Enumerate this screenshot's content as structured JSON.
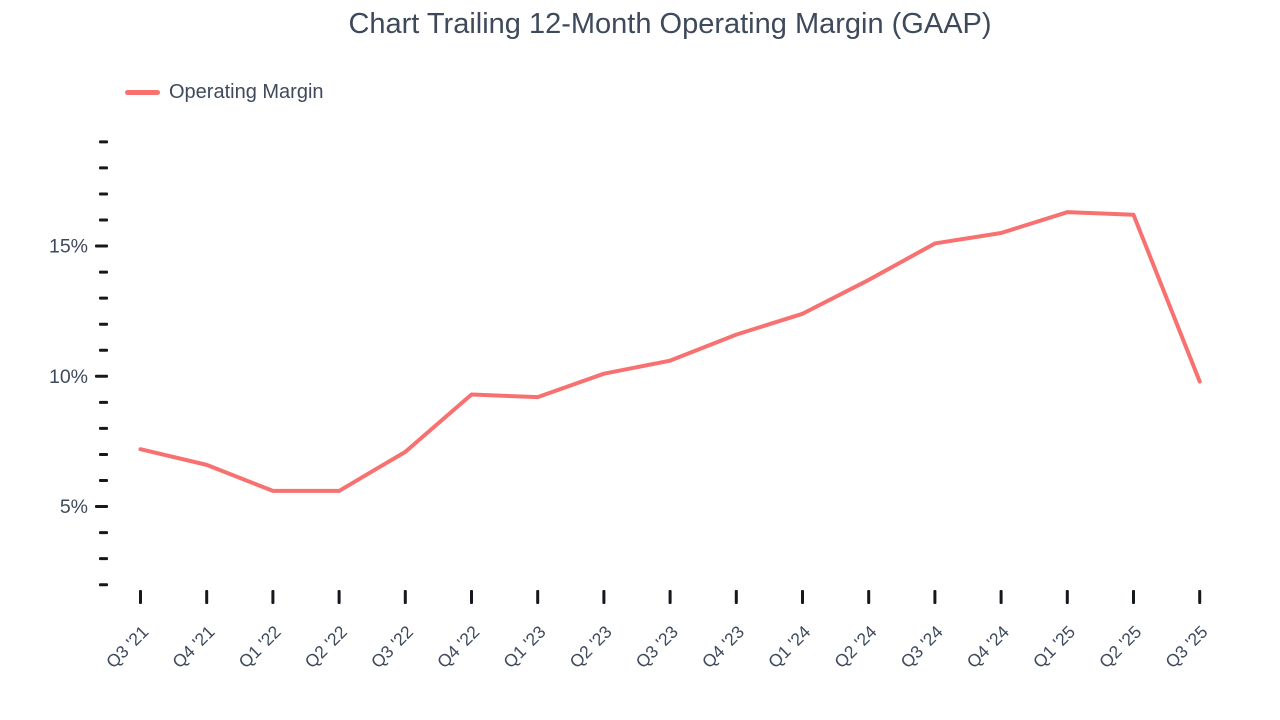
{
  "page": {
    "background": "#ffffff"
  },
  "chart_data": {
    "type": "line",
    "title": "Chart Trailing 12-Month Operating Margin (GAAP)",
    "categories": [
      "Q3 '21",
      "Q4 '21",
      "Q1 '22",
      "Q2 '22",
      "Q3 '22",
      "Q4 '22",
      "Q1 '23",
      "Q2 '23",
      "Q3 '23",
      "Q4 '23",
      "Q1 '24",
      "Q2 '24",
      "Q3 '24",
      "Q4 '24",
      "Q1 '25",
      "Q2 '25",
      "Q3 '25"
    ],
    "series": [
      {
        "name": "Operating Margin",
        "values": [
          7.2,
          6.6,
          5.6,
          5.6,
          7.1,
          9.3,
          9.2,
          10.1,
          10.6,
          11.6,
          12.4,
          13.7,
          15.1,
          15.5,
          16.3,
          16.2,
          9.8
        ],
        "color": "#f87171"
      }
    ],
    "xlabel": "",
    "ylabel": "",
    "y_axis": {
      "min": 2,
      "max": 19,
      "minor_tick_step": 1,
      "labeled_ticks": [
        5,
        10,
        15
      ],
      "tick_label_suffix": "%"
    },
    "legend": {
      "position": "top-left",
      "entries": [
        "Operating Margin"
      ]
    },
    "grid": false,
    "axis_lines": false,
    "text_color": "#3e4a5c",
    "tick_color": "#15181d"
  }
}
